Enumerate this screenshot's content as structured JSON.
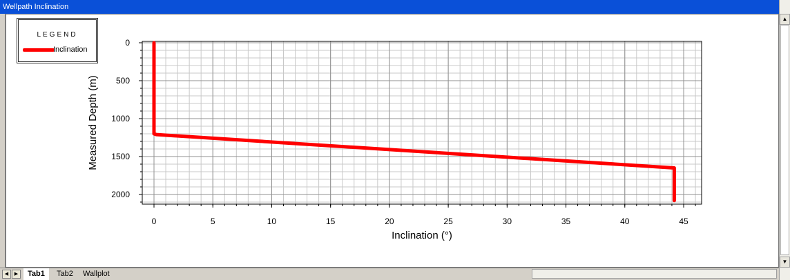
{
  "window": {
    "title": "Wellpath Inclination"
  },
  "legend": {
    "title": "LEGEND",
    "entry": "Inclination"
  },
  "tabs": [
    "Tab1",
    "Tab2",
    "Wallplot"
  ],
  "chart_data": {
    "type": "line",
    "xlabel": "Inclination (°)",
    "ylabel": "Measured Depth (m)",
    "xlim": [
      0,
      45
    ],
    "ylim": [
      0,
      2000
    ],
    "y_inverted": true,
    "grid": true,
    "legend_position": "top-left",
    "x_ticks": [
      0,
      5,
      10,
      15,
      20,
      25,
      30,
      35,
      40,
      45
    ],
    "y_ticks": [
      0,
      500,
      1000,
      1500,
      2000
    ],
    "series": [
      {
        "name": "Inclination",
        "color": "#ff0000",
        "x": [
          0,
          0,
          0.2,
          44.2,
          44.2
        ],
        "y": [
          0,
          1200,
          1210,
          1650,
          2080
        ]
      }
    ]
  }
}
